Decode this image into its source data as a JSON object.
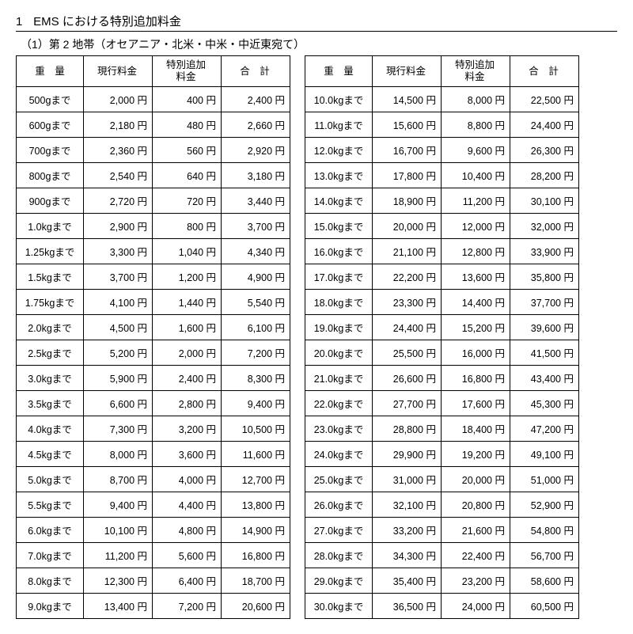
{
  "heading": {
    "number": "1",
    "text": "EMS における特別追加料金"
  },
  "subtitle": "（1）第 2 地帯（オセアニア・北米・中米・中近東宛て）",
  "currency_suffix": " 円",
  "columns": {
    "weight": "重　量",
    "price": "現行料金",
    "surcharge_l1": "特別追加",
    "surcharge_l2": "料金",
    "total": "合　計"
  },
  "left_rows": [
    {
      "w": "500gまで",
      "p": "2,000",
      "s": "400",
      "t": "2,400"
    },
    {
      "w": "600gまで",
      "p": "2,180",
      "s": "480",
      "t": "2,660"
    },
    {
      "w": "700gまで",
      "p": "2,360",
      "s": "560",
      "t": "2,920"
    },
    {
      "w": "800gまで",
      "p": "2,540",
      "s": "640",
      "t": "3,180"
    },
    {
      "w": "900gまで",
      "p": "2,720",
      "s": "720",
      "t": "3,440"
    },
    {
      "w": "1.0kgまで",
      "p": "2,900",
      "s": "800",
      "t": "3,700"
    },
    {
      "w": "1.25kgまで",
      "p": "3,300",
      "s": "1,040",
      "t": "4,340"
    },
    {
      "w": "1.5kgまで",
      "p": "3,700",
      "s": "1,200",
      "t": "4,900"
    },
    {
      "w": "1.75kgまで",
      "p": "4,100",
      "s": "1,440",
      "t": "5,540"
    },
    {
      "w": "2.0kgまで",
      "p": "4,500",
      "s": "1,600",
      "t": "6,100"
    },
    {
      "w": "2.5kgまで",
      "p": "5,200",
      "s": "2,000",
      "t": "7,200"
    },
    {
      "w": "3.0kgまで",
      "p": "5,900",
      "s": "2,400",
      "t": "8,300"
    },
    {
      "w": "3.5kgまで",
      "p": "6,600",
      "s": "2,800",
      "t": "9,400"
    },
    {
      "w": "4.0kgまで",
      "p": "7,300",
      "s": "3,200",
      "t": "10,500"
    },
    {
      "w": "4.5kgまで",
      "p": "8,000",
      "s": "3,600",
      "t": "11,600"
    },
    {
      "w": "5.0kgまで",
      "p": "8,700",
      "s": "4,000",
      "t": "12,700"
    },
    {
      "w": "5.5kgまで",
      "p": "9,400",
      "s": "4,400",
      "t": "13,800"
    },
    {
      "w": "6.0kgまで",
      "p": "10,100",
      "s": "4,800",
      "t": "14,900"
    },
    {
      "w": "7.0kgまで",
      "p": "11,200",
      "s": "5,600",
      "t": "16,800"
    },
    {
      "w": "8.0kgまで",
      "p": "12,300",
      "s": "6,400",
      "t": "18,700"
    },
    {
      "w": "9.0kgまで",
      "p": "13,400",
      "s": "7,200",
      "t": "20,600"
    }
  ],
  "right_rows": [
    {
      "w": "10.0kgまで",
      "p": "14,500",
      "s": "8,000",
      "t": "22,500"
    },
    {
      "w": "11.0kgまで",
      "p": "15,600",
      "s": "8,800",
      "t": "24,400"
    },
    {
      "w": "12.0kgまで",
      "p": "16,700",
      "s": "9,600",
      "t": "26,300"
    },
    {
      "w": "13.0kgまで",
      "p": "17,800",
      "s": "10,400",
      "t": "28,200"
    },
    {
      "w": "14.0kgまで",
      "p": "18,900",
      "s": "11,200",
      "t": "30,100"
    },
    {
      "w": "15.0kgまで",
      "p": "20,000",
      "s": "12,000",
      "t": "32,000"
    },
    {
      "w": "16.0kgまで",
      "p": "21,100",
      "s": "12,800",
      "t": "33,900"
    },
    {
      "w": "17.0kgまで",
      "p": "22,200",
      "s": "13,600",
      "t": "35,800"
    },
    {
      "w": "18.0kgまで",
      "p": "23,300",
      "s": "14,400",
      "t": "37,700"
    },
    {
      "w": "19.0kgまで",
      "p": "24,400",
      "s": "15,200",
      "t": "39,600"
    },
    {
      "w": "20.0kgまで",
      "p": "25,500",
      "s": "16,000",
      "t": "41,500"
    },
    {
      "w": "21.0kgまで",
      "p": "26,600",
      "s": "16,800",
      "t": "43,400"
    },
    {
      "w": "22.0kgまで",
      "p": "27,700",
      "s": "17,600",
      "t": "45,300"
    },
    {
      "w": "23.0kgまで",
      "p": "28,800",
      "s": "18,400",
      "t": "47,200"
    },
    {
      "w": "24.0kgまで",
      "p": "29,900",
      "s": "19,200",
      "t": "49,100"
    },
    {
      "w": "25.0kgまで",
      "p": "31,000",
      "s": "20,000",
      "t": "51,000"
    },
    {
      "w": "26.0kgまで",
      "p": "32,100",
      "s": "20,800",
      "t": "52,900"
    },
    {
      "w": "27.0kgまで",
      "p": "33,200",
      "s": "21,600",
      "t": "54,800"
    },
    {
      "w": "28.0kgまで",
      "p": "34,300",
      "s": "22,400",
      "t": "56,700"
    },
    {
      "w": "29.0kgまで",
      "p": "35,400",
      "s": "23,200",
      "t": "58,600"
    },
    {
      "w": "30.0kgまで",
      "p": "36,500",
      "s": "24,000",
      "t": "60,500"
    }
  ]
}
